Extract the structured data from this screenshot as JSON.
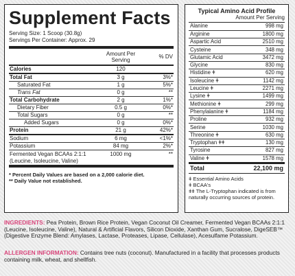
{
  "supplement_facts": {
    "title": "Supplement Facts",
    "serving_size": "Serving Size: 1 Scoop (30.8g)",
    "servings_per_container": "Servings Per Container: Approx. 29",
    "col_amount": "Amount Per Serving",
    "col_dv": "% DV",
    "rows": [
      {
        "name": "Calories",
        "amount": "120",
        "dv": "",
        "style": "bold"
      },
      {
        "name": "Total Fat",
        "amount": "3 g",
        "dv": "3%*",
        "style": "bold"
      },
      {
        "name": "Saturated Fat",
        "amount": "1 g",
        "dv": "5%*",
        "style": "ind1"
      },
      {
        "name": "Trans Fat",
        "amount": "0 g",
        "dv": "**",
        "style": "ind1 it"
      },
      {
        "name": "Total Carbohydrate",
        "amount": "2 g",
        "dv": "1%*",
        "style": "bold"
      },
      {
        "name": "Dietary Fiber",
        "amount": "0.5 g",
        "dv": "0%*",
        "style": "ind1"
      },
      {
        "name": "Total Sugars",
        "amount": "0 g",
        "dv": "**",
        "style": "ind1"
      },
      {
        "name": "Added Sugars",
        "amount": "0 g",
        "dv": "0%*",
        "style": "ind2"
      },
      {
        "name": "Protein",
        "amount": "21 g",
        "dv": "42%*",
        "style": "bold"
      },
      {
        "name": "Sodium",
        "amount": "6 mg",
        "dv": "<1%*",
        "style": ""
      },
      {
        "name": "Potassium",
        "amount": "84 mg",
        "dv": "2%*",
        "style": ""
      }
    ],
    "bcaa_name": "Fermented Vegan BCAAs 2:1:1 (Leucine, Isoleucine, Valine)",
    "bcaa_amount": "1000 mg",
    "bcaa_dv": "**",
    "note1": "* Percent Daily Values are based on a 2,000 calorie diet.",
    "note2": "** Daily Value not established."
  },
  "amino_profile": {
    "title": "Typical Amino Acid Profile",
    "subtitle": "Amount Per Serving",
    "rows": [
      {
        "name": "Alanine",
        "value": "998 mg"
      },
      {
        "name": "Arginine",
        "value": "1800 mg"
      },
      {
        "name": "Aspartic Acid",
        "value": "2510 mg"
      },
      {
        "name": "Cysteine",
        "value": "348 mg"
      },
      {
        "name": "Glutamic Acid",
        "value": "3472 mg"
      },
      {
        "name": "Glycine",
        "value": "830 mg"
      },
      {
        "name": "Histidine ǂ",
        "value": "620 mg"
      },
      {
        "name": "Isoleucine ǂ",
        "value": "1142 mg"
      },
      {
        "name": "Leucine ǂ",
        "value": "2271 mg"
      },
      {
        "name": "Lysine ǂ",
        "value": "1499 mg"
      },
      {
        "name": "Methionine ǂ",
        "value": "299 mg"
      },
      {
        "name": "Phenylalanine ǂ",
        "value": "1184 mg"
      },
      {
        "name": "Proline",
        "value": "932 mg"
      },
      {
        "name": "Serine",
        "value": "1030 mg"
      },
      {
        "name": "Threonine ǂ",
        "value": "630 mg"
      },
      {
        "name": "Tryptophan ǂǂ",
        "value": "130 mg"
      },
      {
        "name": "Tyrosine",
        "value": "827 mg"
      },
      {
        "name": "Valine ǂ",
        "value": "1578 mg"
      }
    ],
    "total_label": "Total",
    "total_value": "22,100 mg",
    "note1": "ǂ Essential Amino Acids",
    "note2": "ǂ BCAA's",
    "note3": "ǂǂ The L-Tryptophan indicated is from naturally occurring sources of protein."
  },
  "ingredients": {
    "label": "INGREDIENTS:",
    "text": " Pea Protein, Brown Rice Protein, Vegan Coconut Oil Creamer, Fermented Vegan BCAAs 2:1:1 (Leucine, Isoleucine, Valine), Natural & Artificial Flavors, Silicon Dioxide, Xanthan Gum, Sucralose, DigeSEB™ (Digestive Enzyme Blend: Amylases, Lactase, Proteases, Lipase, Cellulase), Acesulfame Potassium."
  },
  "allergen": {
    "label": "ALLERGEN INFORMATION:",
    "text": " Contains tree nuts (coconut). Manufactured in a facility that processes products containing milk, wheat, and shellfish."
  },
  "colors": {
    "accent": "#d8447a",
    "border": "#222222"
  }
}
